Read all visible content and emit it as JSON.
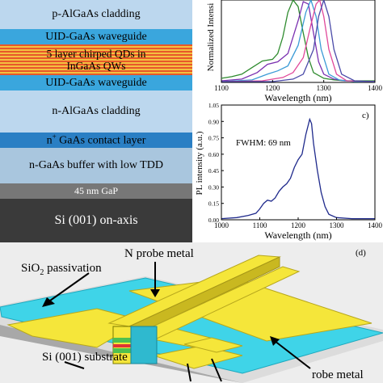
{
  "layers": [
    {
      "id": "p-algaas",
      "label": "p-AlGaAs cladding",
      "color": "#bcd7ee",
      "text_color": "#000000"
    },
    {
      "id": "uid-top",
      "label": "UID-GaAs waveguide",
      "color": "#3aa6dd",
      "text_color": "#000000"
    },
    {
      "id": "qd",
      "label_lines": [
        "5 layer chirped QDs in",
        "InGaAs QWs"
      ],
      "colors": [
        "#e8582a",
        "#f4c040"
      ]
    },
    {
      "id": "uid-bottom",
      "label": "UID-GaAs waveguide",
      "color": "#3aa6dd",
      "text_color": "#000000"
    },
    {
      "id": "n-algaas",
      "label": "n-AlGaAs cladding",
      "color": "#bcd7ee",
      "text_color": "#000000"
    },
    {
      "id": "n-contact",
      "label_prefix": "n",
      "label_sup": "+",
      "label_suffix": " GaAs contact layer",
      "color": "#2a7fc4",
      "text_color": "#000000"
    },
    {
      "id": "n-buffer",
      "label": "n-GaAs buffer with low TDD",
      "color": "#a9c6de",
      "text_color": "#000000"
    },
    {
      "id": "gap",
      "label": "45 nm GaP",
      "color": "#777777",
      "text_color": "#ffffff"
    },
    {
      "id": "si",
      "label": "Si (001) on-axis",
      "color": "#3a3a3a",
      "text_color": "#ffffff"
    }
  ],
  "chart_data": [
    {
      "type": "line",
      "panel": "b",
      "xlabel": "Wavelength (nm)",
      "ylabel": "Normalized Intensi",
      "x_ticks": [
        "1100",
        "1200",
        "1300",
        "1400"
      ],
      "xlim": [
        1100,
        1400
      ],
      "ylim": [
        0,
        1
      ],
      "series": [
        {
          "color": "#2e8b2e",
          "x": [
            1100,
            1120,
            1140,
            1160,
            1180,
            1200,
            1210,
            1220,
            1230,
            1240,
            1250,
            1260,
            1270,
            1280,
            1300,
            1320,
            1340,
            1360,
            1400
          ],
          "y": [
            0.05,
            0.07,
            0.1,
            0.18,
            0.26,
            0.28,
            0.35,
            0.55,
            0.85,
            1.0,
            0.92,
            0.6,
            0.3,
            0.12,
            0.05,
            0.03,
            0.02,
            0.02,
            0.02
          ]
        },
        {
          "color": "#7a2fb0",
          "x": [
            1100,
            1140,
            1170,
            1190,
            1210,
            1230,
            1250,
            1260,
            1270,
            1280,
            1290,
            1300,
            1320,
            1340,
            1400
          ],
          "y": [
            0.02,
            0.04,
            0.12,
            0.22,
            0.25,
            0.35,
            0.75,
            0.98,
            0.95,
            0.6,
            0.25,
            0.1,
            0.04,
            0.02,
            0.01
          ]
        },
        {
          "color": "#3b9bd6",
          "x": [
            1100,
            1160,
            1190,
            1210,
            1230,
            1250,
            1265,
            1275,
            1285,
            1295,
            1310,
            1330,
            1360,
            1400
          ],
          "y": [
            0.01,
            0.03,
            0.1,
            0.14,
            0.2,
            0.45,
            0.85,
            1.0,
            0.8,
            0.4,
            0.1,
            0.03,
            0.01,
            0.01
          ]
        },
        {
          "color": "#e0489a",
          "x": [
            1100,
            1180,
            1220,
            1240,
            1260,
            1275,
            1285,
            1292,
            1300,
            1310,
            1325,
            1345,
            1400
          ],
          "y": [
            0.01,
            0.02,
            0.06,
            0.12,
            0.3,
            0.7,
            0.95,
            1.0,
            0.8,
            0.4,
            0.1,
            0.02,
            0.01
          ]
        },
        {
          "color": "#4a4aa8",
          "x": [
            1100,
            1200,
            1240,
            1260,
            1280,
            1290,
            1300,
            1310,
            1320,
            1335,
            1360,
            1400
          ],
          "y": [
            0.01,
            0.01,
            0.04,
            0.1,
            0.4,
            0.8,
            1.0,
            0.8,
            0.4,
            0.1,
            0.02,
            0.01
          ]
        }
      ]
    },
    {
      "type": "line",
      "panel": "c",
      "xlabel": "Wavelength (nm)",
      "ylabel": "PL intensity (a.u.)",
      "annotation": "FWHM: 69 nm",
      "x_ticks": [
        "1000",
        "1100",
        "1200",
        "1300",
        "1400"
      ],
      "y_ticks": [
        "0.00",
        "0.15",
        "0.30",
        "0.45",
        "0.60",
        "0.75",
        "0.90",
        "1.05"
      ],
      "xlim": [
        1000,
        1400
      ],
      "ylim": [
        0,
        1.05
      ],
      "series": [
        {
          "color": "#1f2a8c",
          "x": [
            1000,
            1040,
            1070,
            1090,
            1100,
            1110,
            1120,
            1130,
            1140,
            1150,
            1160,
            1170,
            1180,
            1190,
            1200,
            1210,
            1220,
            1230,
            1235,
            1240,
            1250,
            1260,
            1270,
            1280,
            1300,
            1340,
            1400
          ],
          "y": [
            0.01,
            0.02,
            0.04,
            0.06,
            0.1,
            0.15,
            0.18,
            0.17,
            0.2,
            0.26,
            0.3,
            0.33,
            0.38,
            0.48,
            0.55,
            0.6,
            0.78,
            0.92,
            0.88,
            0.7,
            0.45,
            0.25,
            0.12,
            0.05,
            0.02,
            0.01,
            0.01
          ]
        }
      ]
    }
  ],
  "panel_labels": {
    "b": "",
    "c": "c)",
    "d": "(d)"
  },
  "device": {
    "n_probe_label": "N probe metal",
    "sio2_prefix": "SiO",
    "sio2_sub": "2",
    "sio2_suffix": " passivation",
    "si_substrate_label": "Si (001) substrate",
    "p_probe_label": "robe metal"
  },
  "colors": {
    "metal": "#f5e63a",
    "metal_dark": "#c9b820",
    "passivation": "#3fd4e8",
    "substrate": "#dcdcdc",
    "substrate_side": "#a8a8a8"
  }
}
